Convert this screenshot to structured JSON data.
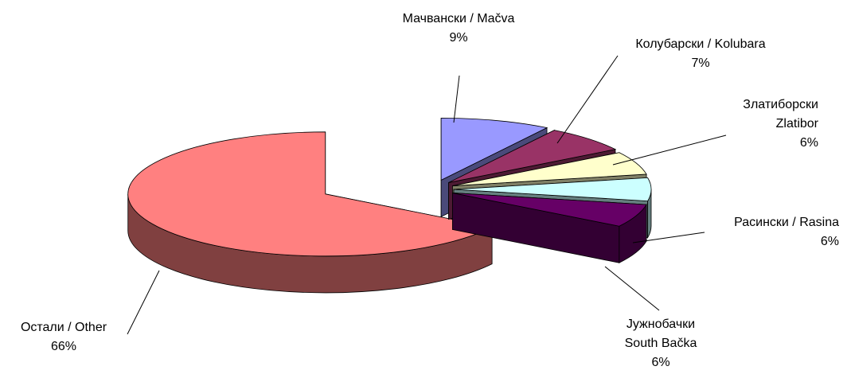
{
  "chart_data": {
    "type": "pie",
    "title": "",
    "slices": [
      {
        "name": "Мачвански / Mačva",
        "name_lines": [
          "Мачвански / Mačva"
        ],
        "value": 9,
        "label": "9%",
        "top": "#9999ff",
        "side": "#4a4a7a"
      },
      {
        "name": "Колубарски / Kolubara",
        "name_lines": [
          "Колубарски / Kolubara"
        ],
        "value": 7,
        "label": "7%",
        "top": "#993366",
        "side": "#4d1a33"
      },
      {
        "name": "Златиборски Zlatibor",
        "name_lines": [
          "Златиборски",
          "Zlatibor"
        ],
        "value": 6,
        "label": "6%",
        "top": "#ffffcc",
        "side": "#808066"
      },
      {
        "name": "Расински / Rasina",
        "name_lines": [
          "Расински / Rasina"
        ],
        "value": 6,
        "label": "6%",
        "top": "#ccffff",
        "side": "#668080"
      },
      {
        "name": "Јужнобачки South Bačka",
        "name_lines": [
          "Јужнобачки",
          "South Bačka"
        ],
        "value": 6,
        "label": "6%",
        "top": "#660066",
        "side": "#330033"
      },
      {
        "name": "Остали / Other",
        "name_lines": [
          "Остали / Other"
        ],
        "value": 66,
        "label": "66%",
        "top": "#ff8080",
        "side": "#804040"
      }
    ],
    "legend": "none",
    "style": "3d-exploded"
  }
}
